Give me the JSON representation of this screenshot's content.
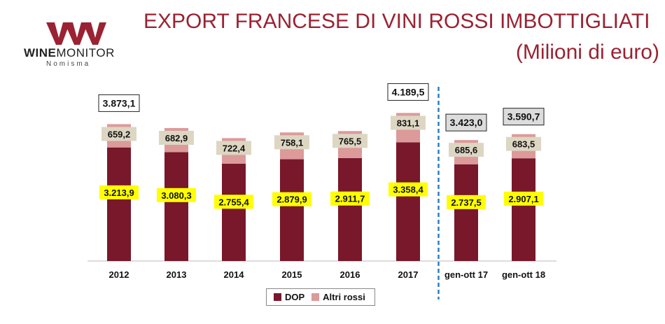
{
  "header": {
    "logo_brand_bold": "WINE",
    "logo_brand_rest": "MONITOR",
    "logo_sub": "Nomisma",
    "title": "EXPORT FRANCESE DI VINI ROSSI IMBOTTIGLIATI",
    "subtitle": "(Milioni di euro)"
  },
  "colors": {
    "dop": "#78182a",
    "altri": "#dc9a9a",
    "title": "#9a2232",
    "value_bg_yellow": "#ffff00",
    "value_bg_beige": "#ddd6c2",
    "separator": "#2a7fc2"
  },
  "chart_data": {
    "type": "bar",
    "stacked": true,
    "categories": [
      "2012",
      "2013",
      "2014",
      "2015",
      "2016",
      "2017",
      "gen-ott 17",
      "gen-ott 18"
    ],
    "series": [
      {
        "name": "DOP",
        "values": [
          3213.9,
          3080.3,
          2755.4,
          2879.9,
          2911.7,
          3358.4,
          2737.5,
          2907.1
        ],
        "labels": [
          "3.213,9",
          "3.080,3",
          "2.755,4",
          "2.879,9",
          "2.911,7",
          "3.358,4",
          "2.737,5",
          "2.907,1"
        ]
      },
      {
        "name": "Altri rossi",
        "values": [
          659.2,
          682.9,
          722.4,
          758.1,
          765.5,
          831.1,
          685.6,
          683.5
        ],
        "labels": [
          "659,2",
          "682,9",
          "722,4",
          "758,1",
          "765,5",
          "831,1",
          "685,6",
          "683,5"
        ]
      }
    ],
    "totals": [
      {
        "index": 0,
        "label": "3.873,1"
      },
      {
        "index": 5,
        "label": "4.189,5"
      },
      {
        "index": 6,
        "label": "3.423,0"
      },
      {
        "index": 7,
        "label": "3.590,7"
      }
    ],
    "separator_after_index": 5,
    "legend": [
      "DOP",
      "Altri rossi"
    ],
    "legend_position": "bottom",
    "grid": false
  }
}
